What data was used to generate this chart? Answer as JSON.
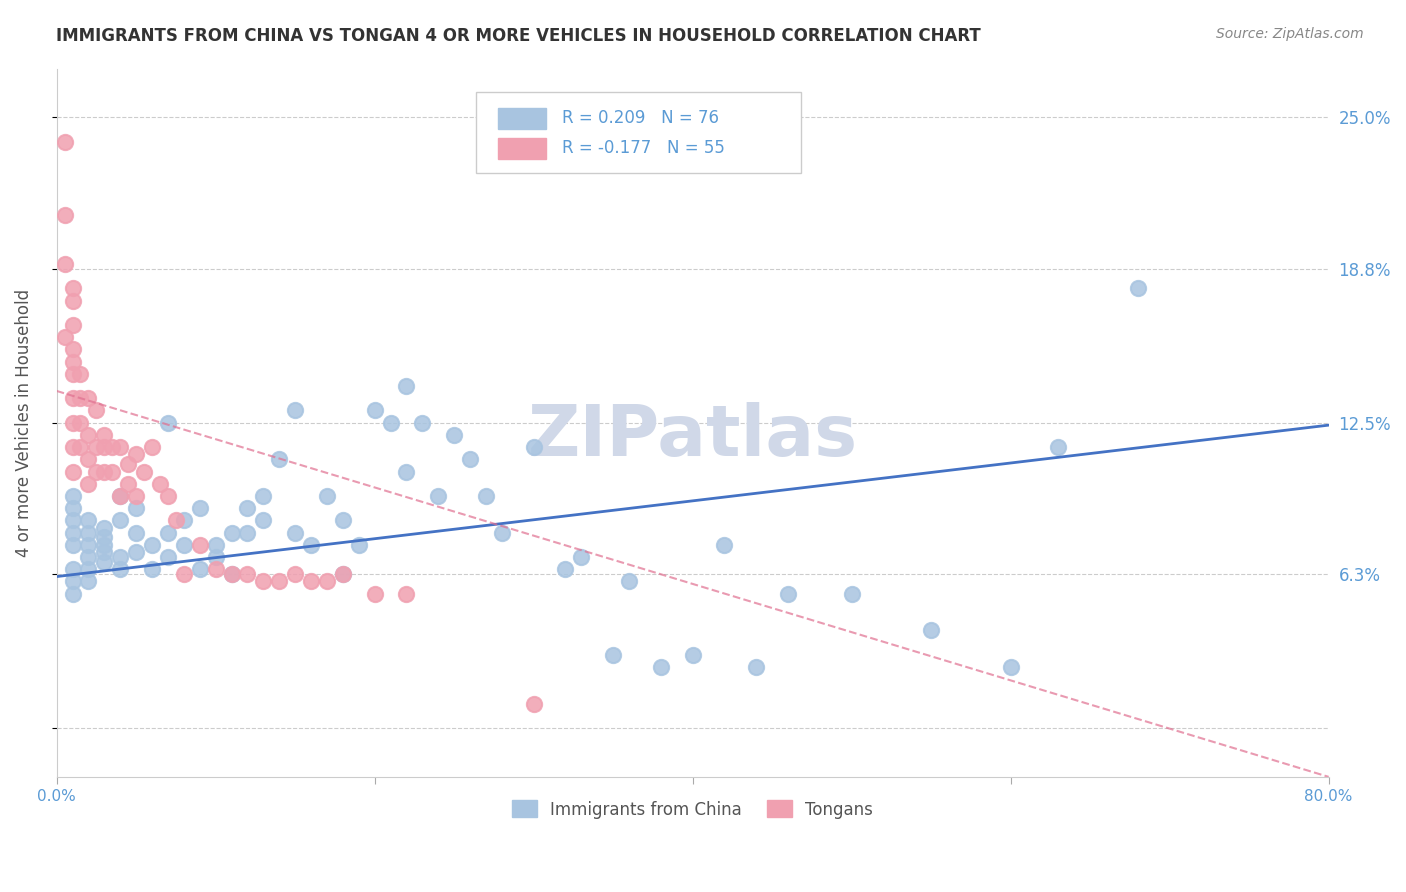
{
  "title": "IMMIGRANTS FROM CHINA VS TONGAN 4 OR MORE VEHICLES IN HOUSEHOLD CORRELATION CHART",
  "source": "Source: ZipAtlas.com",
  "ylabel": "4 or more Vehicles in Household",
  "xlim": [
    0.0,
    0.8
  ],
  "ylim": [
    -0.02,
    0.27
  ],
  "xticks": [
    0.0,
    0.2,
    0.4,
    0.6,
    0.8
  ],
  "xticklabels": [
    "0.0%",
    "",
    "",
    "",
    "80.0%"
  ],
  "ytick_positions": [
    0.0,
    0.063,
    0.125,
    0.188,
    0.25
  ],
  "ytick_labels": [
    "",
    "6.3%",
    "12.5%",
    "18.8%",
    "25.0%"
  ],
  "legend_china": "R = 0.209   N = 76",
  "legend_tonga": "R = -0.177   N = 55",
  "china_color": "#a8c4e0",
  "tonga_color": "#f0a0b0",
  "china_line_color": "#4472c4",
  "tonga_line_color": "#e07090",
  "watermark": "ZIPatlas",
  "watermark_color": "#d0d8e8",
  "background_color": "#ffffff",
  "grid_color": "#cccccc",
  "right_label_color": "#5b9bd5",
  "china_scatter_x": [
    0.01,
    0.01,
    0.01,
    0.01,
    0.01,
    0.01,
    0.01,
    0.01,
    0.02,
    0.02,
    0.02,
    0.02,
    0.02,
    0.02,
    0.03,
    0.03,
    0.03,
    0.03,
    0.03,
    0.04,
    0.04,
    0.04,
    0.04,
    0.05,
    0.05,
    0.05,
    0.06,
    0.06,
    0.07,
    0.07,
    0.07,
    0.08,
    0.08,
    0.09,
    0.09,
    0.1,
    0.1,
    0.11,
    0.11,
    0.12,
    0.12,
    0.13,
    0.13,
    0.14,
    0.15,
    0.15,
    0.16,
    0.17,
    0.18,
    0.18,
    0.19,
    0.2,
    0.21,
    0.22,
    0.22,
    0.23,
    0.24,
    0.25,
    0.26,
    0.27,
    0.28,
    0.3,
    0.32,
    0.33,
    0.35,
    0.36,
    0.38,
    0.4,
    0.42,
    0.44,
    0.46,
    0.5,
    0.55,
    0.6,
    0.63,
    0.68
  ],
  "china_scatter_y": [
    0.065,
    0.075,
    0.08,
    0.085,
    0.09,
    0.095,
    0.06,
    0.055,
    0.07,
    0.075,
    0.08,
    0.085,
    0.065,
    0.06,
    0.072,
    0.078,
    0.082,
    0.068,
    0.075,
    0.095,
    0.085,
    0.07,
    0.065,
    0.09,
    0.08,
    0.072,
    0.075,
    0.065,
    0.125,
    0.08,
    0.07,
    0.085,
    0.075,
    0.09,
    0.065,
    0.075,
    0.07,
    0.08,
    0.063,
    0.09,
    0.08,
    0.085,
    0.095,
    0.11,
    0.13,
    0.08,
    0.075,
    0.095,
    0.085,
    0.063,
    0.075,
    0.13,
    0.125,
    0.105,
    0.14,
    0.125,
    0.095,
    0.12,
    0.11,
    0.095,
    0.08,
    0.115,
    0.065,
    0.07,
    0.03,
    0.06,
    0.025,
    0.03,
    0.075,
    0.025,
    0.055,
    0.055,
    0.04,
    0.025,
    0.115,
    0.18
  ],
  "tonga_scatter_x": [
    0.005,
    0.005,
    0.005,
    0.005,
    0.01,
    0.01,
    0.01,
    0.01,
    0.01,
    0.01,
    0.01,
    0.01,
    0.01,
    0.01,
    0.015,
    0.015,
    0.015,
    0.015,
    0.02,
    0.02,
    0.02,
    0.02,
    0.025,
    0.025,
    0.025,
    0.03,
    0.03,
    0.03,
    0.035,
    0.035,
    0.04,
    0.04,
    0.045,
    0.045,
    0.05,
    0.05,
    0.055,
    0.06,
    0.065,
    0.07,
    0.075,
    0.08,
    0.09,
    0.1,
    0.11,
    0.12,
    0.13,
    0.14,
    0.15,
    0.16,
    0.17,
    0.18,
    0.2,
    0.22,
    0.3
  ],
  "tonga_scatter_y": [
    0.24,
    0.21,
    0.19,
    0.16,
    0.18,
    0.175,
    0.165,
    0.155,
    0.15,
    0.145,
    0.135,
    0.125,
    0.115,
    0.105,
    0.145,
    0.135,
    0.125,
    0.115,
    0.135,
    0.12,
    0.11,
    0.1,
    0.13,
    0.115,
    0.105,
    0.12,
    0.115,
    0.105,
    0.115,
    0.105,
    0.115,
    0.095,
    0.108,
    0.1,
    0.112,
    0.095,
    0.105,
    0.115,
    0.1,
    0.095,
    0.085,
    0.063,
    0.075,
    0.065,
    0.063,
    0.063,
    0.06,
    0.06,
    0.063,
    0.06,
    0.06,
    0.063,
    0.055,
    0.055,
    0.01
  ],
  "china_trend_x": [
    0.0,
    0.8
  ],
  "china_trend_y": [
    0.062,
    0.124
  ],
  "tonga_trend_x": [
    0.0,
    0.8
  ],
  "tonga_trend_y": [
    0.138,
    -0.02
  ]
}
